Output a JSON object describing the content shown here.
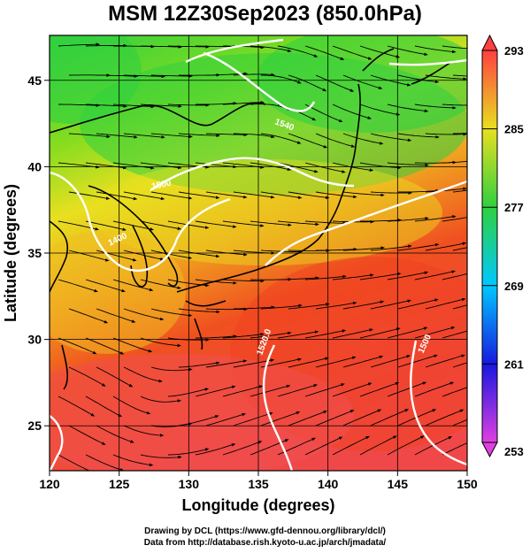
{
  "title": "MSM 12Z30Sep2023 (850.0hPa)",
  "axes": {
    "xlabel": "Longitude (degrees)",
    "ylabel": "Latitude  (degrees)",
    "x_ticks": [
      120,
      125,
      130,
      135,
      140,
      145,
      150
    ],
    "y_ticks": [
      25,
      30,
      35,
      40,
      45
    ],
    "xlim": [
      120,
      150
    ],
    "ylim": [
      22.4,
      47.6
    ]
  },
  "colorbar": {
    "ticks": [
      253,
      261,
      269,
      277,
      285,
      293
    ],
    "range": [
      253,
      293
    ],
    "colors": [
      "#e040e0",
      "#1818e0",
      "#00c8ff",
      "#30d040",
      "#e8e020",
      "#ff4040"
    ]
  },
  "contours": {
    "labels": [
      "1500",
      "1400",
      "1520.0",
      "1500",
      "1540"
    ],
    "color": "#ffffff"
  },
  "credit": {
    "line1": "Drawing by DCL (https://www.gfd-dennou.org/library/dcl/)",
    "line2": "Data from http://database.rish.kyoto-u.ac.jp/arch/jmadata/"
  }
}
